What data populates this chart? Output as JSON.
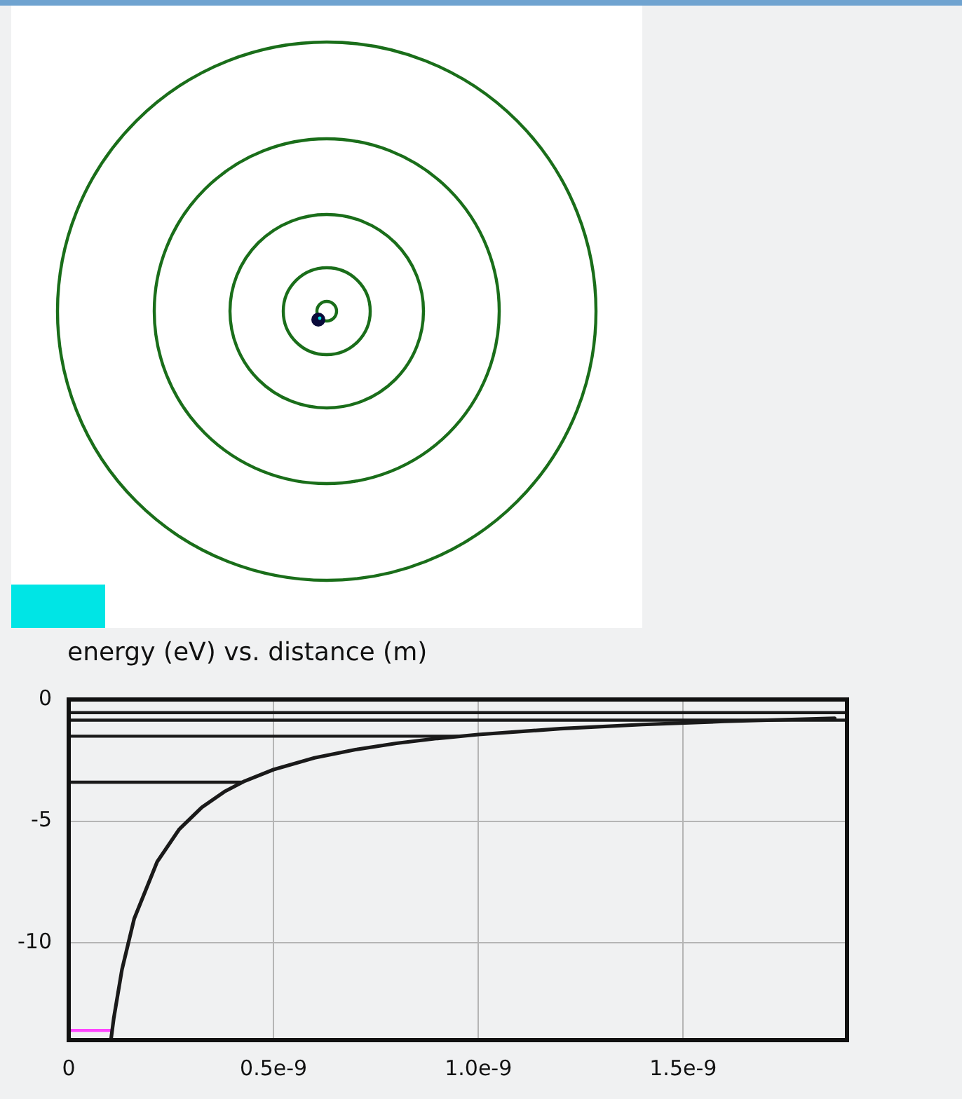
{
  "chart_data": {
    "type": "line",
    "title": "energy (eV) vs. distance (m)",
    "xlim": [
      0,
      1.9e-09
    ],
    "ylim": [
      -14,
      0
    ],
    "xticks": [
      0,
      {
        "value": 5e-10,
        "label": "0.5e-9"
      },
      {
        "value": 1e-09,
        "label": "1.0e-9"
      },
      {
        "value": 1.5e-09,
        "label": "1.5e-9"
      }
    ],
    "yticks": [
      0,
      -5,
      -10
    ],
    "grid": true,
    "legend": false,
    "marker": "none",
    "line_style": "solid",
    "series": [
      {
        "color": "#1a1a1a",
        "x": [
          1.03e-10,
          1.1e-10,
          1.3e-10,
          1.6e-10,
          2.16e-10,
          2.7e-10,
          3.25e-10,
          3.8e-10,
          4.3e-10,
          5e-10,
          6e-10,
          7e-10,
          8e-10,
          9e-10,
          1e-09,
          1.2e-09,
          1.4e-09,
          1.6e-09,
          1.87e-09
        ],
        "values": [
          -14,
          -13.1,
          -11.1,
          -9,
          -6.67,
          -5.33,
          -4.43,
          -3.79,
          -3.35,
          -2.88,
          -2.4,
          -2.06,
          -1.8,
          -1.6,
          -1.44,
          -1.2,
          -1.03,
          -0.9,
          -0.77
        ]
      },
      {
        "color": "#ff44ff",
        "x": [
          0,
          1.06e-10
        ],
        "values": [
          -13.6,
          -13.6
        ]
      },
      {
        "color": "#1a1a1a",
        "x": [
          0,
          4.24e-10
        ],
        "values": [
          -3.4,
          -3.4
        ]
      },
      {
        "color": "#1a1a1a",
        "x": [
          0,
          9.5e-10
        ],
        "values": [
          -1.51,
          -1.51
        ]
      },
      {
        "color": "#1a1a1a",
        "x": [
          0,
          1.9e-09
        ],
        "values": [
          -0.85,
          -0.85
        ]
      },
      {
        "color": "#1a1a1a",
        "x": [
          0,
          1.9e-09
        ],
        "values": [
          -0.54,
          -0.54
        ]
      }
    ]
  }
}
